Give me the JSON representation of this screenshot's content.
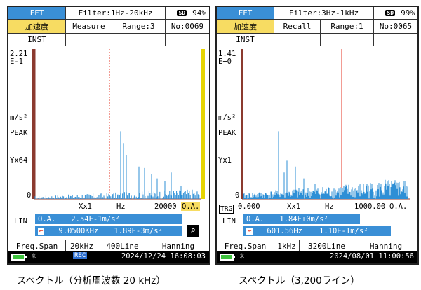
{
  "screen1": {
    "mode": "FFT",
    "filter": "Filter:1Hz-20kHz",
    "sd_label": "SD",
    "battery_pct": "94%",
    "quantity": "加速度",
    "action": "Measure",
    "range": "Range:3",
    "number": "No:0069",
    "inst": "INST",
    "y_top1": "2.21",
    "y_top2": "E-1",
    "y_unit": "m/s²",
    "y_peak": "PEAK",
    "y_scale": "Yx64",
    "y_zero": "0",
    "x_left": "Xx1",
    "x_unit": "Hz",
    "x_right": "20000",
    "x_oa": "O.A.",
    "lin": "LIN",
    "oa_label": "O.A.",
    "oa_value": "2.54E-1m/s²",
    "cursor_freq": "9.0500KHz",
    "cursor_value": "1.89E-3m/s²",
    "freq_span_label": "Freq.Span",
    "freq_span_value": "20kHz",
    "lines": "400Line",
    "window": "Hanning",
    "rec": "REC",
    "datetime": "2024/12/24 16:08:03",
    "caption": "スペクトル（分析周波数 20 kHz）"
  },
  "screen2": {
    "mode": "FFT",
    "filter": "Filter:3Hz-1kHz",
    "sd_label": "SD",
    "battery_pct": "99%",
    "quantity": "加速度",
    "action": "Recall",
    "range": "Range:1",
    "number": "No:0065",
    "inst": "INST",
    "y_top1": "1.41",
    "y_top2": "E+0",
    "y_unit": "m/s²",
    "y_peak": "PEAK",
    "y_scale": "Yx1",
    "y_zero": "0",
    "x_start": "0.000",
    "x_left": "Xx1",
    "x_unit": "Hz",
    "x_right": "1000.00",
    "x_oa": "O.A.",
    "trg": "TRG",
    "lin": "LIN",
    "oa_label": "O.A.",
    "oa_value": "1.84E+0m/s²",
    "cursor_freq": "601.56Hz",
    "cursor_value": "1.10E-1m/s²",
    "freq_span_label": "Freq.Span",
    "freq_span_value": "1kHz",
    "lines": "3200Line",
    "window": "Hanning",
    "datetime": "2024/08/01 11:00:56",
    "caption": "スペクトル（3,200ライン）"
  },
  "colors": {
    "header_blue": "#3a8fd6",
    "header_yellow": "#f7dc62",
    "spectrum_blue": "#2e8fd6",
    "cursor_red": "#e53a2a",
    "axis_brown": "#8b3a2f",
    "oa_bar_yellow": "#e6d400"
  },
  "icons": {
    "search": "magnifier-icon",
    "brightness": "sun-icon",
    "battery": "battery-icon"
  }
}
